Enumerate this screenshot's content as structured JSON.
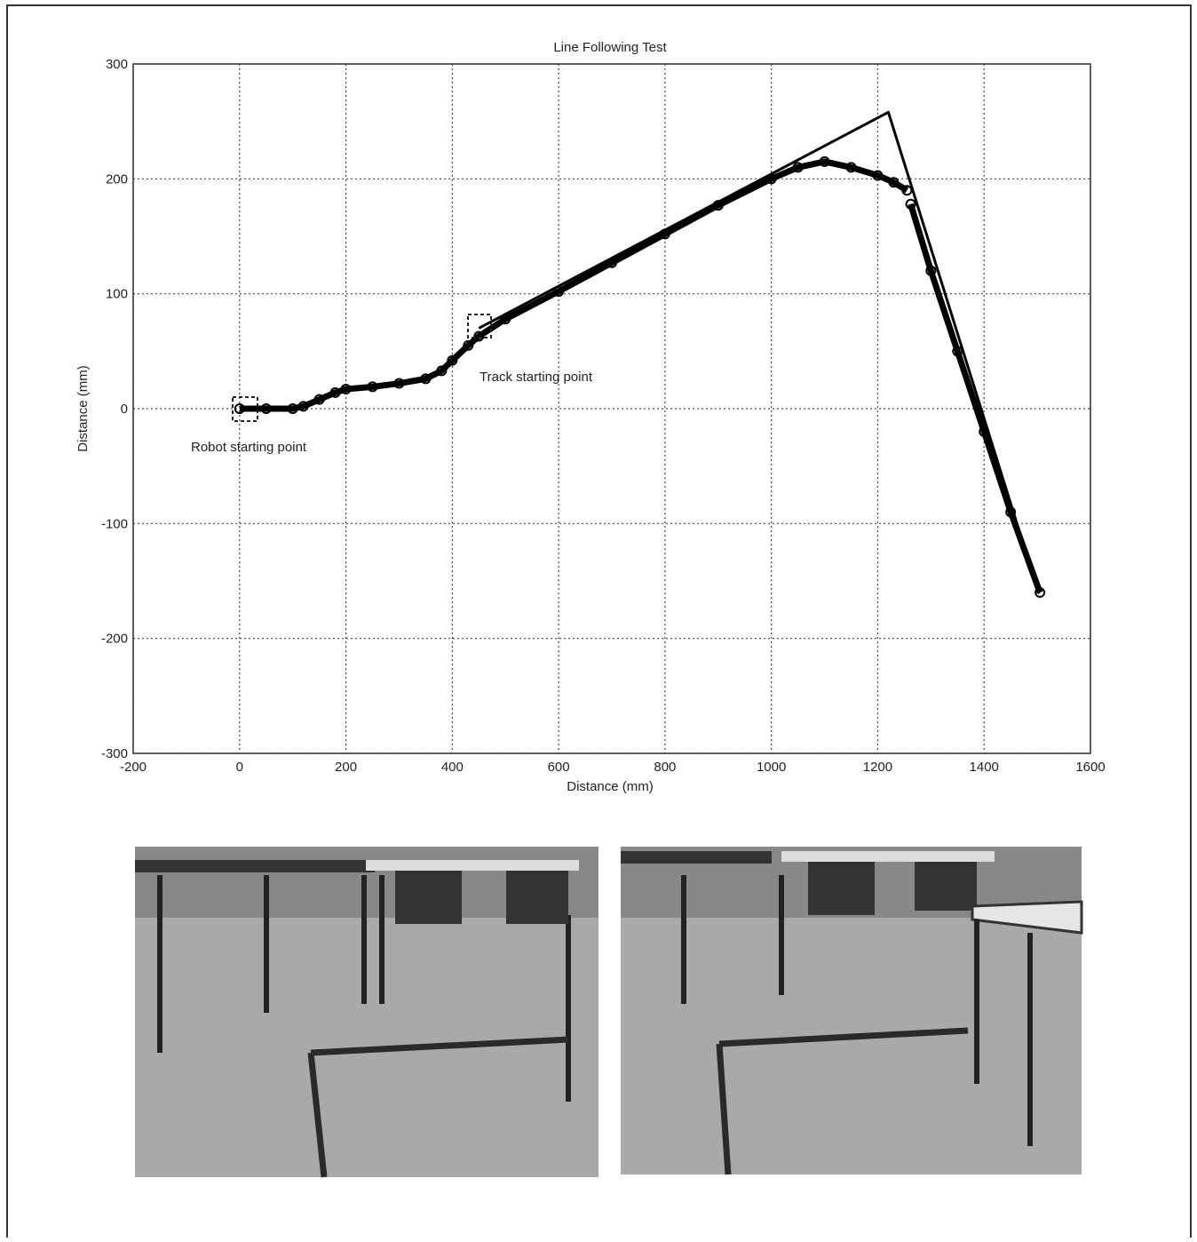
{
  "chart_data": {
    "type": "line",
    "title": "Line Following Test",
    "x_label": "Distance (mm)",
    "y_label": "Distance (mm)",
    "xlim": [
      -200,
      1600
    ],
    "ylim": [
      -300,
      300
    ],
    "xticks": [
      -200,
      0,
      200,
      400,
      600,
      800,
      1000,
      1200,
      1400,
      1600
    ],
    "yticks": [
      -300,
      -200,
      -100,
      0,
      100,
      200,
      300
    ],
    "grid": true,
    "series": [
      {
        "color": "#000000",
        "markers": true,
        "x": [
          0,
          50,
          100,
          120,
          150,
          180,
          200,
          250,
          300,
          350,
          380,
          400,
          430,
          450,
          500,
          600,
          700,
          800,
          900,
          1000,
          1050,
          1100,
          1150,
          1200,
          1230,
          1255,
          null,
          1262,
          1300,
          1350,
          1400,
          1450,
          1505
        ],
        "values": [
          0,
          0,
          0,
          2,
          8,
          14,
          17,
          19,
          22,
          26,
          33,
          42,
          55,
          63,
          78,
          102,
          127,
          152,
          177,
          200,
          210,
          215,
          210,
          203,
          197,
          190,
          null,
          178,
          120,
          50,
          -20,
          -90,
          -160
        ]
      },
      {
        "color": "#000000",
        "markers": false,
        "x": [
          450,
          1220,
          1503
        ],
        "values": [
          70,
          258,
          -161
        ]
      }
    ],
    "annotations": [
      "Robot starting point",
      "Track starting point"
    ]
  }
}
